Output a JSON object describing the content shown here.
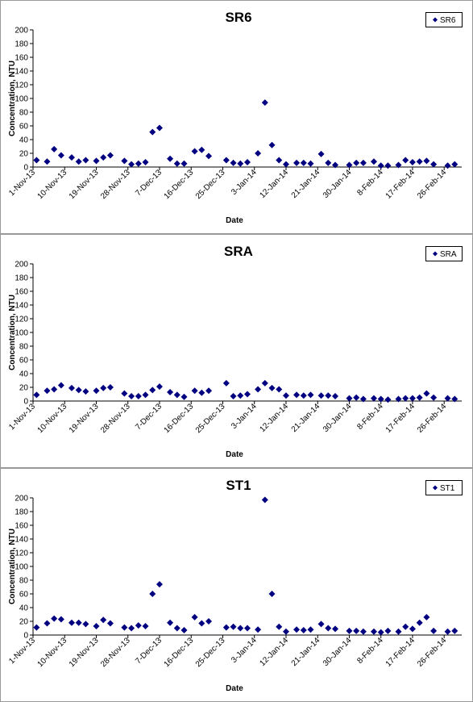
{
  "chart_data": [
    {
      "type": "scatter",
      "title": "SR6",
      "x_label": "Date",
      "y_label": "Concentration, NTU",
      "legend": "top-right",
      "xlim": [
        "2013-11-01",
        "2014-03-03"
      ],
      "ylim": [
        0,
        200
      ],
      "yticks": [
        0,
        20,
        40,
        60,
        80,
        100,
        120,
        140,
        160,
        180,
        200
      ],
      "xticks": [
        {
          "value": "2013-11-01",
          "label": "1-Nov-13"
        },
        {
          "value": "2013-11-10",
          "label": "10-Nov-13"
        },
        {
          "value": "2013-11-19",
          "label": "19-Nov-13"
        },
        {
          "value": "2013-11-28",
          "label": "28-Nov-13"
        },
        {
          "value": "2013-12-07",
          "label": "7-Dec-13"
        },
        {
          "value": "2013-12-16",
          "label": "16-Dec-13"
        },
        {
          "value": "2013-12-25",
          "label": "25-Dec-13"
        },
        {
          "value": "2014-01-03",
          "label": "3-Jan-14"
        },
        {
          "value": "2014-01-12",
          "label": "12-Jan-14"
        },
        {
          "value": "2014-01-21",
          "label": "21-Jan-14"
        },
        {
          "value": "2014-01-30",
          "label": "30-Jan-14"
        },
        {
          "value": "2014-02-08",
          "label": "8-Feb-14"
        },
        {
          "value": "2014-02-17",
          "label": "17-Feb-14"
        },
        {
          "value": "2014-02-26",
          "label": "26-Feb-14"
        }
      ],
      "series": [
        {
          "name": "SR6",
          "color": "#000080",
          "x": [
            "2013-11-02",
            "2013-11-05",
            "2013-11-07",
            "2013-11-09",
            "2013-11-12",
            "2013-11-14",
            "2013-11-16",
            "2013-11-19",
            "2013-11-21",
            "2013-11-23",
            "2013-11-27",
            "2013-11-29",
            "2013-12-01",
            "2013-12-03",
            "2013-12-05",
            "2013-12-07",
            "2013-12-10",
            "2013-12-12",
            "2013-12-14",
            "2013-12-17",
            "2013-12-19",
            "2013-12-21",
            "2013-12-26",
            "2013-12-28",
            "2013-12-30",
            "2014-01-01",
            "2014-01-04",
            "2014-01-06",
            "2014-01-08",
            "2014-01-10",
            "2014-01-12",
            "2014-01-15",
            "2014-01-17",
            "2014-01-19",
            "2014-01-22",
            "2014-01-24",
            "2014-01-26",
            "2014-01-30",
            "2014-02-01",
            "2014-02-03",
            "2014-02-06",
            "2014-02-08",
            "2014-02-10",
            "2014-02-13",
            "2014-02-15",
            "2014-02-17",
            "2014-02-19",
            "2014-02-21",
            "2014-02-23",
            "2014-02-27",
            "2014-03-01"
          ],
          "values": [
            10,
            8,
            26,
            17,
            14,
            8,
            10,
            9,
            14,
            17,
            9,
            4,
            5,
            7,
            51,
            57,
            12,
            5,
            5,
            23,
            25,
            16,
            10,
            6,
            5,
            7,
            20,
            94,
            32,
            10,
            4,
            6,
            6,
            5,
            19,
            6,
            3,
            3,
            6,
            6,
            8,
            2,
            2,
            3,
            10,
            7,
            8,
            9,
            4,
            2,
            4
          ]
        }
      ]
    },
    {
      "type": "scatter",
      "title": "SRA",
      "x_label": "Date",
      "y_label": "Concentration, NTU",
      "legend": "top-right",
      "xlim": [
        "2013-11-01",
        "2014-03-03"
      ],
      "ylim": [
        0,
        200
      ],
      "yticks": [
        0,
        20,
        40,
        60,
        80,
        100,
        120,
        140,
        160,
        180,
        200
      ],
      "xticks": [
        {
          "value": "2013-11-01",
          "label": "1-Nov-13"
        },
        {
          "value": "2013-11-10",
          "label": "10-Nov-13"
        },
        {
          "value": "2013-11-19",
          "label": "19-Nov-13"
        },
        {
          "value": "2013-11-28",
          "label": "28-Nov-13"
        },
        {
          "value": "2013-12-07",
          "label": "7-Dec-13"
        },
        {
          "value": "2013-12-16",
          "label": "16-Dec-13"
        },
        {
          "value": "2013-12-25",
          "label": "25-Dec-13"
        },
        {
          "value": "2014-01-03",
          "label": "3-Jan-14"
        },
        {
          "value": "2014-01-12",
          "label": "12-Jan-14"
        },
        {
          "value": "2014-01-21",
          "label": "21-Jan-14"
        },
        {
          "value": "2014-01-30",
          "label": "30-Jan-14"
        },
        {
          "value": "2014-02-08",
          "label": "8-Feb-14"
        },
        {
          "value": "2014-02-17",
          "label": "17-Feb-14"
        },
        {
          "value": "2014-02-26",
          "label": "26-Feb-14"
        }
      ],
      "series": [
        {
          "name": "SRA",
          "color": "#000080",
          "x": [
            "2013-11-02",
            "2013-11-05",
            "2013-11-07",
            "2013-11-09",
            "2013-11-12",
            "2013-11-14",
            "2013-11-16",
            "2013-11-19",
            "2013-11-21",
            "2013-11-23",
            "2013-11-27",
            "2013-11-29",
            "2013-12-01",
            "2013-12-03",
            "2013-12-05",
            "2013-12-07",
            "2013-12-10",
            "2013-12-12",
            "2013-12-14",
            "2013-12-17",
            "2013-12-19",
            "2013-12-21",
            "2013-12-26",
            "2013-12-28",
            "2013-12-30",
            "2014-01-01",
            "2014-01-04",
            "2014-01-06",
            "2014-01-08",
            "2014-01-10",
            "2014-01-12",
            "2014-01-15",
            "2014-01-17",
            "2014-01-19",
            "2014-01-22",
            "2014-01-24",
            "2014-01-26",
            "2014-01-30",
            "2014-02-01",
            "2014-02-03",
            "2014-02-06",
            "2014-02-08",
            "2014-02-10",
            "2014-02-13",
            "2014-02-15",
            "2014-02-17",
            "2014-02-19",
            "2014-02-21",
            "2014-02-23",
            "2014-02-27",
            "2014-03-01"
          ],
          "values": [
            9,
            15,
            17,
            23,
            19,
            16,
            14,
            15,
            19,
            20,
            11,
            7,
            7,
            9,
            16,
            21,
            13,
            9,
            6,
            15,
            12,
            15,
            26,
            7,
            8,
            10,
            17,
            26,
            19,
            17,
            8,
            9,
            8,
            9,
            8,
            8,
            7,
            4,
            5,
            3,
            4,
            3,
            2,
            3,
            4,
            4,
            5,
            11,
            5,
            4,
            3
          ]
        }
      ]
    },
    {
      "type": "scatter",
      "title": "ST1",
      "x_label": "Date",
      "y_label": "Concentration, NTU",
      "legend": "top-right",
      "xlim": [
        "2013-11-01",
        "2014-03-03"
      ],
      "ylim": [
        0,
        200
      ],
      "yticks": [
        0,
        20,
        40,
        60,
        80,
        100,
        120,
        140,
        160,
        180,
        200
      ],
      "xticks": [
        {
          "value": "2013-11-01",
          "label": "1-Nov-13"
        },
        {
          "value": "2013-11-10",
          "label": "10-Nov-13"
        },
        {
          "value": "2013-11-19",
          "label": "19-Nov-13"
        },
        {
          "value": "2013-11-28",
          "label": "28-Nov-13"
        },
        {
          "value": "2013-12-07",
          "label": "7-Dec-13"
        },
        {
          "value": "2013-12-16",
          "label": "16-Dec-13"
        },
        {
          "value": "2013-12-25",
          "label": "25-Dec-13"
        },
        {
          "value": "2014-01-03",
          "label": "3-Jan-14"
        },
        {
          "value": "2014-01-12",
          "label": "12-Jan-14"
        },
        {
          "value": "2014-01-21",
          "label": "21-Jan-14"
        },
        {
          "value": "2014-01-30",
          "label": "30-Jan-14"
        },
        {
          "value": "2014-02-08",
          "label": "8-Feb-14"
        },
        {
          "value": "2014-02-17",
          "label": "17-Feb-14"
        },
        {
          "value": "2014-02-26",
          "label": "26-Feb-14"
        }
      ],
      "series": [
        {
          "name": "ST1",
          "color": "#000080",
          "x": [
            "2013-11-02",
            "2013-11-05",
            "2013-11-07",
            "2013-11-09",
            "2013-11-12",
            "2013-11-14",
            "2013-11-16",
            "2013-11-19",
            "2013-11-21",
            "2013-11-23",
            "2013-11-27",
            "2013-11-29",
            "2013-12-01",
            "2013-12-03",
            "2013-12-05",
            "2013-12-07",
            "2013-12-10",
            "2013-12-12",
            "2013-12-14",
            "2013-12-17",
            "2013-12-19",
            "2013-12-21",
            "2013-12-26",
            "2013-12-28",
            "2013-12-30",
            "2014-01-01",
            "2014-01-04",
            "2014-01-06",
            "2014-01-08",
            "2014-01-10",
            "2014-01-12",
            "2014-01-15",
            "2014-01-17",
            "2014-01-19",
            "2014-01-22",
            "2014-01-24",
            "2014-01-26",
            "2014-01-30",
            "2014-02-01",
            "2014-02-03",
            "2014-02-06",
            "2014-02-08",
            "2014-02-10",
            "2014-02-13",
            "2014-02-15",
            "2014-02-17",
            "2014-02-19",
            "2014-02-21",
            "2014-02-23",
            "2014-02-27",
            "2014-03-01"
          ],
          "values": [
            11,
            17,
            24,
            23,
            18,
            18,
            16,
            13,
            22,
            17,
            11,
            10,
            14,
            13,
            60,
            74,
            18,
            10,
            7,
            26,
            17,
            20,
            11,
            12,
            10,
            10,
            8,
            197,
            60,
            12,
            5,
            8,
            7,
            8,
            16,
            10,
            9,
            6,
            6,
            5,
            5,
            4,
            6,
            5,
            12,
            9,
            18,
            26,
            6,
            5,
            6
          ]
        }
      ]
    }
  ]
}
